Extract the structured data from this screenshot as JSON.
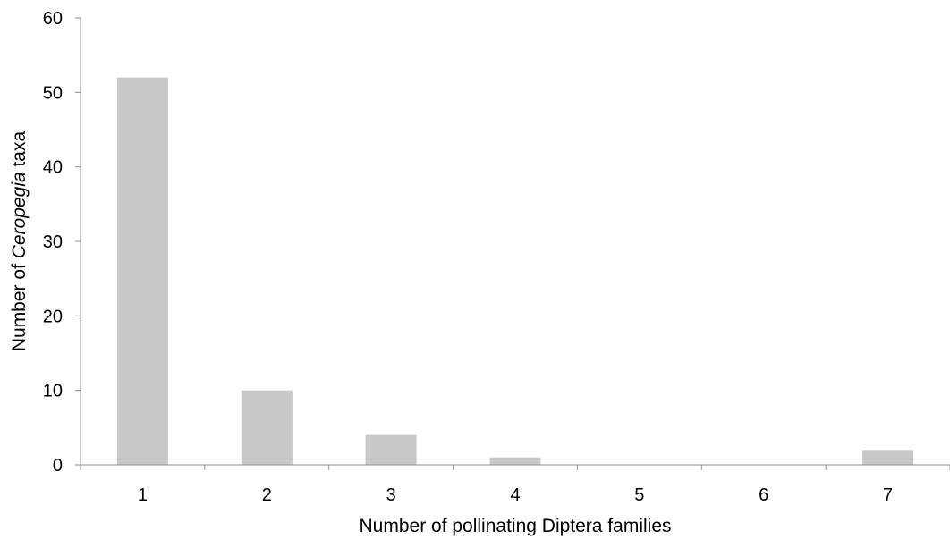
{
  "chart_data": {
    "type": "bar",
    "categories": [
      "1",
      "2",
      "3",
      "4",
      "5",
      "6",
      "7"
    ],
    "values": [
      52,
      10,
      4,
      1,
      0,
      0,
      2
    ],
    "xlabel": "Number of pollinating Diptera families",
    "ylabel": {
      "prefix": "Number of ",
      "italic": "Ceropegia",
      "suffix": " taxa"
    },
    "ylim": [
      0,
      60
    ],
    "yticks": [
      "0",
      "10",
      "20",
      "30",
      "40",
      "50",
      "60"
    ],
    "grid": false,
    "legend": "none",
    "colors": {
      "bar": "#c8c8c8",
      "axis": "#8c8c8c"
    }
  }
}
